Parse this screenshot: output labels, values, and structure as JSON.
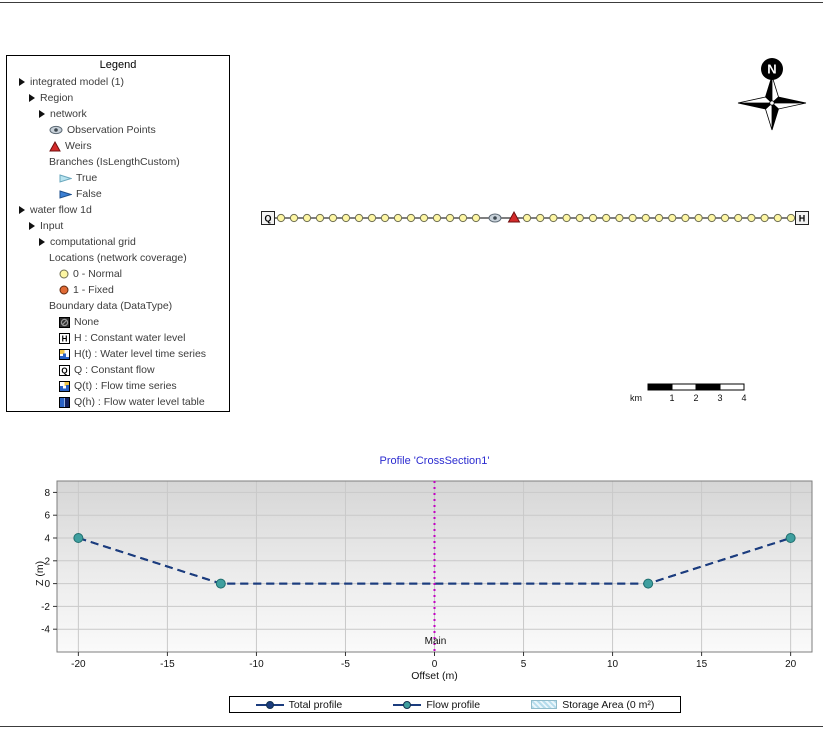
{
  "legend_panel": {
    "title": "Legend",
    "tree": [
      {
        "label": "integrated model (1)",
        "level": 0,
        "icon": "expander"
      },
      {
        "label": "Region",
        "level": 1,
        "icon": "expander"
      },
      {
        "label": "network",
        "level": 2,
        "icon": "expander"
      },
      {
        "label": "Observation Points",
        "level": 3,
        "icon": "eye"
      },
      {
        "label": "Weirs",
        "level": 3,
        "icon": "weir"
      },
      {
        "label": "Branches (IsLengthCustom)",
        "level": 3,
        "icon": "none"
      },
      {
        "label": "True",
        "level": 4,
        "icon": "branch-true"
      },
      {
        "label": "False",
        "level": 4,
        "icon": "branch-false"
      },
      {
        "label": "water flow 1d",
        "level": 0,
        "icon": "expander"
      },
      {
        "label": "Input",
        "level": 1,
        "icon": "expander"
      },
      {
        "label": "computational grid",
        "level": 2,
        "icon": "expander"
      },
      {
        "label": "Locations (network coverage)",
        "level": 3,
        "icon": "none"
      },
      {
        "label": "0 - Normal",
        "level": 4,
        "icon": "node-normal"
      },
      {
        "label": "1 - Fixed",
        "level": 4,
        "icon": "node-fixed"
      },
      {
        "label": "Boundary data (DataType)",
        "level": 3,
        "icon": "none"
      },
      {
        "label": "None",
        "level": 4,
        "icon": "bc-none"
      },
      {
        "label": "H : Constant water level",
        "level": 4,
        "icon": "bc-h"
      },
      {
        "label": "H(t) : Water level time series",
        "level": 4,
        "icon": "bc-ht"
      },
      {
        "label": "Q : Constant flow",
        "level": 4,
        "icon": "bc-q"
      },
      {
        "label": "Q(t) : Flow time series",
        "level": 4,
        "icon": "bc-qt"
      },
      {
        "label": "Q(h) : Flow water level table",
        "level": 4,
        "icon": "bc-qh"
      }
    ]
  },
  "map": {
    "compass_label": "N",
    "network": {
      "left_boundary_label": "Q",
      "right_boundary_label": "H",
      "left_segment_nodes": 16,
      "right_segment_nodes": 21,
      "has_observation_point": true,
      "has_weir": true
    },
    "scale_bar": {
      "unit": "km",
      "labels": [
        "1",
        "2",
        "3",
        "4"
      ]
    }
  },
  "chart_data": {
    "type": "line",
    "title": "Profile 'CrossSection1'",
    "xlabel": "Offset (m)",
    "ylabel": "Z (m)",
    "xlim": [
      -21.2,
      21.2
    ],
    "ylim": [
      -6,
      9
    ],
    "x_ticks": [
      -20,
      -15,
      -10,
      -5,
      0,
      5,
      10,
      15,
      20
    ],
    "y_ticks": [
      -4,
      -2,
      0,
      2,
      4,
      6,
      8
    ],
    "grid": true,
    "legend_position": "bottom",
    "series": [
      {
        "name": "Total profile",
        "x": [
          -20,
          -12,
          12,
          20
        ],
        "y": [
          4,
          0,
          0,
          4
        ],
        "color": "#1b3c7e",
        "marker_color": "#1b3c7e"
      },
      {
        "name": "Flow profile",
        "x": [
          -20,
          -12,
          12,
          20
        ],
        "y": [
          4,
          0,
          0,
          4
        ],
        "color": "#1b3c7e",
        "marker_color": "#3f9f9f"
      }
    ],
    "reference_line": {
      "x": 0,
      "label": "Main",
      "color": "#c400c4"
    },
    "legend": [
      {
        "label": "Total profile",
        "swatch": "line-dot-navy"
      },
      {
        "label": "Flow profile",
        "swatch": "line-dot-teal"
      },
      {
        "label": "Storage Area (0 m²)",
        "swatch": "hatch"
      }
    ]
  },
  "colors": {
    "title_blue": "#2b2bd0",
    "navy": "#1b3c7e",
    "teal": "#3f9f9f",
    "magenta": "#c400c4",
    "node_yellow": "#fdf6a3",
    "fixed_orange": "#e06a35",
    "weir_red": "#d42a2a"
  }
}
